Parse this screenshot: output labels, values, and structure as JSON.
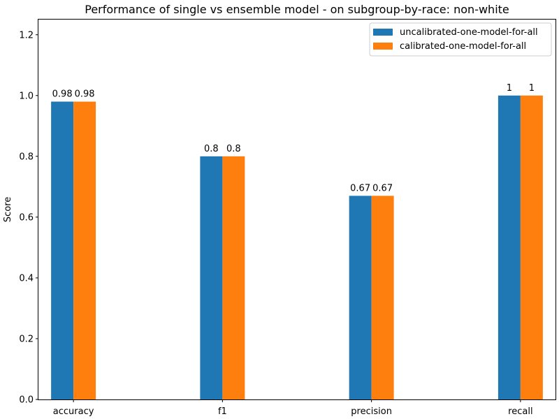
{
  "chart_data": {
    "type": "bar",
    "title": "Performance of single vs ensemble model - on subgroup-by-race: non-white",
    "xlabel": "",
    "ylabel": "Score",
    "categories": [
      "accuracy",
      "f1",
      "precision",
      "recall"
    ],
    "series": [
      {
        "name": "uncalibrated-one-model-for-all",
        "color": "#1f77b4",
        "values": [
          0.98,
          0.8,
          0.67,
          1.0
        ],
        "labels": [
          "0.98",
          "0.8",
          "0.67",
          "1"
        ]
      },
      {
        "name": "calibrated-one-model-for-all",
        "color": "#ff7f0e",
        "values": [
          0.98,
          0.8,
          0.67,
          1.0
        ],
        "labels": [
          "0.98",
          "0.8",
          "0.67",
          "1"
        ]
      }
    ],
    "ylim": [
      0,
      1.25
    ],
    "yticks": [
      "0.0",
      "0.2",
      "0.4",
      "0.6",
      "0.8",
      "1.0",
      "1.2"
    ],
    "grid": false,
    "legend_position": "top-right"
  }
}
